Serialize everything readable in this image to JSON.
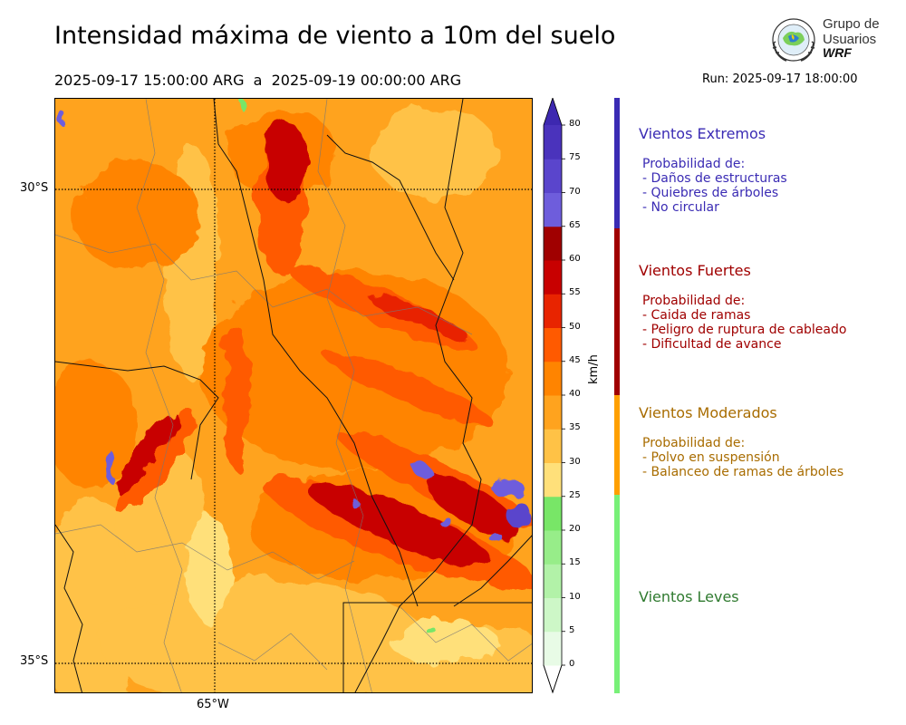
{
  "title": "Intensidad máxima de viento a 10m del suelo",
  "period": "2025-09-17 15:00:00 ARG  a  2025-09-19 00:00:00 ARG",
  "run": "Run: 2025-09-17 18:00:00",
  "logo": {
    "line1": "Grupo de",
    "line2": "Usuarios",
    "line3": "WRF"
  },
  "map": {
    "lat_labels": [
      "30°S",
      "35°S"
    ],
    "lon_labels": [
      "65°W"
    ]
  },
  "colorbar": {
    "unit": "km/h",
    "ticks": [
      "0",
      "5",
      "10",
      "15",
      "20",
      "25",
      "30",
      "35",
      "40",
      "45",
      "50",
      "55",
      "60",
      "65",
      "70",
      "75",
      "80"
    ],
    "colors": [
      "#e8fbe6",
      "#cdf7c7",
      "#b2f2a8",
      "#97ed89",
      "#78e667",
      "#ffe07a",
      "#ffc246",
      "#ffa31e",
      "#ff8400",
      "#ff5a00",
      "#e82400",
      "#c80000",
      "#a00000",
      "#6e5ddc",
      "#5a45cc",
      "#4a33bc"
    ],
    "top_arrow_color": "#3d28b0"
  },
  "categories": [
    {
      "title": "Vientos Extremos",
      "color": "#3a2bb4",
      "lines": [
        "Probabilidad de:",
        "- Daños de estructuras",
        "- Quiebres de árboles",
        "- No circular"
      ]
    },
    {
      "title": "Vientos Fuertes",
      "color": "#a00000",
      "lines": [
        "Probabilidad de:",
        "- Caida de ramas",
        "- Peligro de ruptura de cableado",
        "- Dificultad de avance"
      ]
    },
    {
      "title": "Vientos Moderados",
      "color": "#a86c00",
      "bar_color": "#ffa000",
      "lines": [
        "Probabilidad de:",
        "- Polvo en suspensión",
        "- Balanceo de ramas de árboles"
      ]
    },
    {
      "title": "Vientos Leves",
      "color": "#2f7a2f",
      "bar_color": "#78f078",
      "lines": []
    }
  ]
}
